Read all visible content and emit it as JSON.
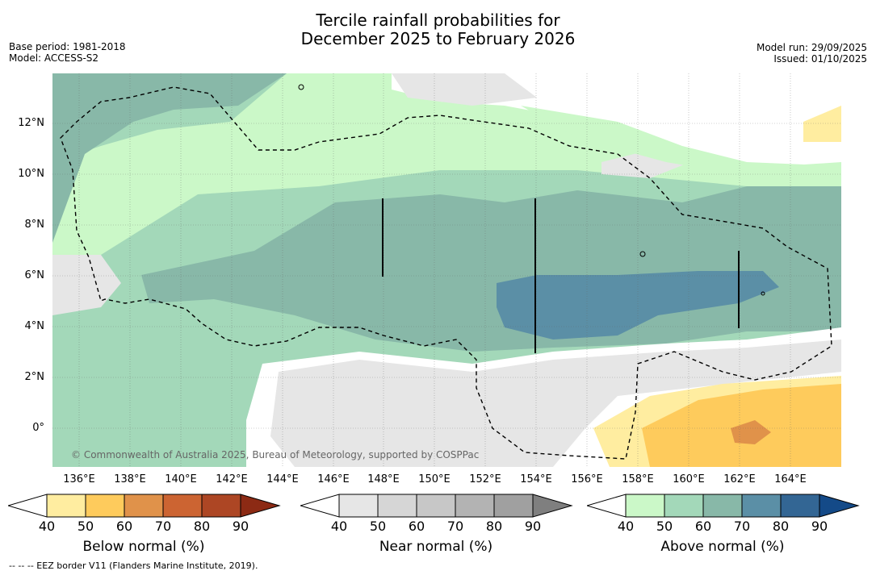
{
  "title": {
    "line1": "Tercile rainfall probabilities for",
    "line2": "December 2025 to February 2026"
  },
  "meta_left": {
    "base_period": "Base period: 1981-2018",
    "model": "Model: ACCESS-S2"
  },
  "meta_right": {
    "model_run": "Model run: 29/09/2025",
    "issued": "Issued: 01/10/2025"
  },
  "map": {
    "x_ticks": [
      "136°E",
      "138°E",
      "140°E",
      "142°E",
      "144°E",
      "146°E",
      "148°E",
      "150°E",
      "152°E",
      "154°E",
      "156°E",
      "158°E",
      "160°E",
      "162°E",
      "164°E"
    ],
    "y_ticks": [
      "12°N",
      "10°N",
      "8°N",
      "6°N",
      "4°N",
      "2°N",
      "0°"
    ],
    "credit": "© Commonwealth of Australia 2025, Bureau of Meteorology, supported by COSPPac"
  },
  "colorbars": {
    "ticks": [
      "40",
      "50",
      "60",
      "70",
      "80",
      "90"
    ],
    "below": {
      "label": "Below normal (%)",
      "colors": [
        "#ffeda0",
        "#fecb5c",
        "#e0924a",
        "#cc6432",
        "#ad4624",
        "#8c2a14"
      ]
    },
    "near": {
      "label": "Near normal (%)",
      "colors": [
        "#e6e6e6",
        "#d6d6d6",
        "#c7c7c7",
        "#b3b3b3",
        "#a0a0a0",
        "#7f7f7f"
      ]
    },
    "above": {
      "label": "Above normal (%)",
      "colors": [
        "#cbf8c8",
        "#a3d8b9",
        "#88b8a8",
        "#5b8fa6",
        "#336694",
        "#144a88"
      ]
    }
  },
  "footnote": "--  --  -- EEZ border V11 (Flanders Marine Institute, 2019)."
}
